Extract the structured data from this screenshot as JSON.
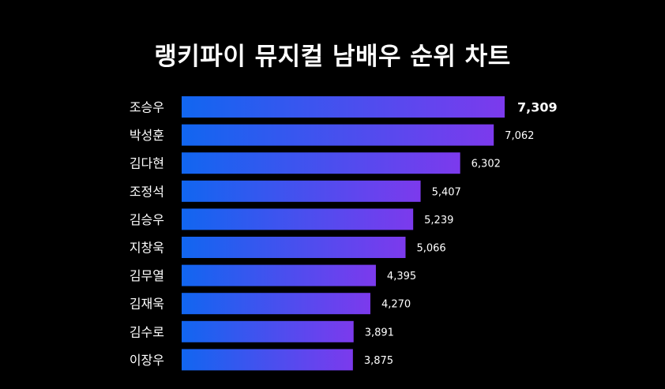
{
  "title": "랭키파이 뮤지컬 남배우 순위 차트",
  "colors": {
    "background": "#000000",
    "bar_start": "#1166f0",
    "bar_end": "#7c3aed",
    "text": "#ffffff"
  },
  "chart_data": {
    "type": "bar",
    "orientation": "horizontal",
    "title": "랭키파이 뮤지컬 남배우 순위 차트",
    "categories": [
      "조승우",
      "박성훈",
      "김다현",
      "조정석",
      "김승우",
      "지창욱",
      "김무열",
      "김재욱",
      "김수로",
      "이장우"
    ],
    "values": [
      7309,
      7062,
      6302,
      5407,
      5239,
      5066,
      4395,
      4270,
      3891,
      3875
    ],
    "value_labels": [
      "7,309",
      "7,062",
      "6,302",
      "5,407",
      "5,239",
      "5,066",
      "4,395",
      "4,270",
      "3,891",
      "3,875"
    ],
    "highlight_index": 0,
    "xlabel": "",
    "ylabel": "",
    "grid": false,
    "legend": "none"
  }
}
